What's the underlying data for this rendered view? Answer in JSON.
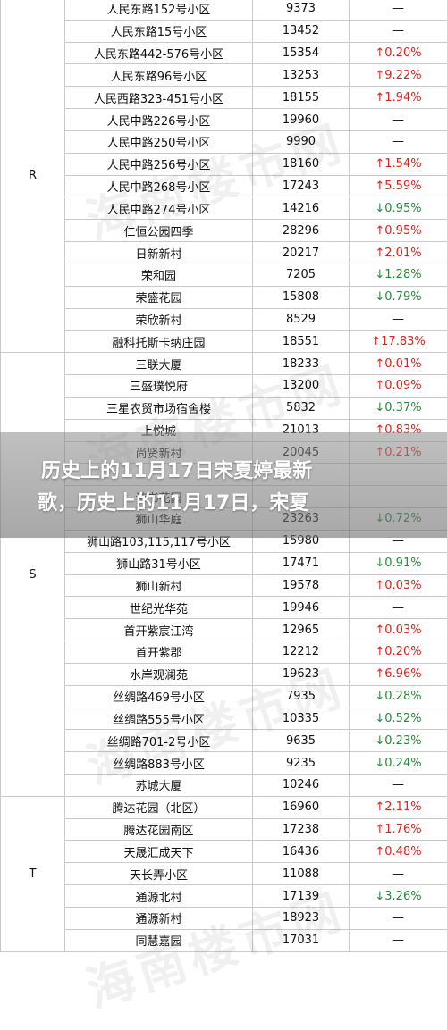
{
  "table": {
    "groups": [
      {
        "letter": "R",
        "rows": [
          {
            "name": "人民东路152号小区",
            "price": "9373",
            "change": "—",
            "dir": "flat"
          },
          {
            "name": "人民东路15号小区",
            "price": "13452",
            "change": "—",
            "dir": "flat"
          },
          {
            "name": "人民东路442-576号小区",
            "price": "15354",
            "change": "↑0.20%",
            "dir": "up"
          },
          {
            "name": "人民东路96号小区",
            "price": "13253",
            "change": "↑9.22%",
            "dir": "up"
          },
          {
            "name": "人民西路323-451号小区",
            "price": "18155",
            "change": "↑1.94%",
            "dir": "up"
          },
          {
            "name": "人民中路226号小区",
            "price": "19960",
            "change": "—",
            "dir": "flat"
          },
          {
            "name": "人民中路250号小区",
            "price": "9990",
            "change": "—",
            "dir": "flat"
          },
          {
            "name": "人民中路256号小区",
            "price": "18160",
            "change": "↑1.54%",
            "dir": "up"
          },
          {
            "name": "人民中路268号小区",
            "price": "17243",
            "change": "↑5.59%",
            "dir": "up"
          },
          {
            "name": "人民中路274号小区",
            "price": "14216",
            "change": "↓0.95%",
            "dir": "down"
          },
          {
            "name": "仁恒公园四季",
            "price": "28296",
            "change": "↑0.95%",
            "dir": "up"
          },
          {
            "name": "日新新村",
            "price": "20217",
            "change": "↑2.01%",
            "dir": "up"
          },
          {
            "name": "荣和园",
            "price": "7205",
            "change": "↓1.28%",
            "dir": "down"
          },
          {
            "name": "荣盛花园",
            "price": "15808",
            "change": "↓0.79%",
            "dir": "down"
          },
          {
            "name": "荣欣新村",
            "price": "8529",
            "change": "—",
            "dir": "flat"
          },
          {
            "name": "融科托斯卡纳庄园",
            "price": "18551",
            "change": "↑17.83%",
            "dir": "up"
          }
        ]
      },
      {
        "letter": "S",
        "rows": [
          {
            "name": "三联大厦",
            "price": "18233",
            "change": "↑0.01%",
            "dir": "up"
          },
          {
            "name": "三盛璞悦府",
            "price": "13200",
            "change": "↑0.09%",
            "dir": "up"
          },
          {
            "name": "三星农贸市场宿舍楼",
            "price": "5832",
            "change": "↓0.37%",
            "dir": "down"
          },
          {
            "name": "上悦城",
            "price": "21013",
            "change": "↑0.83%",
            "dir": "up"
          },
          {
            "name": "尚贤新村",
            "price": "20045",
            "change": "↑0.21%",
            "dir": "up"
          },
          {
            "name": "",
            "price": "",
            "change": "",
            "dir": "flat"
          },
          {
            "name": "诗书花园",
            "price": "",
            "change": "",
            "dir": "flat"
          },
          {
            "name": "狮山华庭",
            "price": "23263",
            "change": "↓0.72%",
            "dir": "down"
          },
          {
            "name": "狮山路103,115,117号小区",
            "price": "15980",
            "change": "—",
            "dir": "flat"
          },
          {
            "name": "狮山路31号小区",
            "price": "17471",
            "change": "↓0.91%",
            "dir": "down"
          },
          {
            "name": "狮山新村",
            "price": "19578",
            "change": "↑0.03%",
            "dir": "up"
          },
          {
            "name": "世纪光华苑",
            "price": "19946",
            "change": "—",
            "dir": "flat"
          },
          {
            "name": "首开紫宸江湾",
            "price": "12965",
            "change": "↑0.03%",
            "dir": "up"
          },
          {
            "name": "首开紫郡",
            "price": "12212",
            "change": "↑0.20%",
            "dir": "up"
          },
          {
            "name": "水岸观澜苑",
            "price": "19623",
            "change": "↑6.96%",
            "dir": "up"
          },
          {
            "name": "丝绸路469号小区",
            "price": "7935",
            "change": "↓0.28%",
            "dir": "down"
          },
          {
            "name": "丝绸路555号小区",
            "price": "10335",
            "change": "↓0.52%",
            "dir": "down"
          },
          {
            "name": "丝绸路701-2号小区",
            "price": "9635",
            "change": "↓0.23%",
            "dir": "down"
          },
          {
            "name": "丝绸路883号小区",
            "price": "9235",
            "change": "↓0.24%",
            "dir": "down"
          },
          {
            "name": "苏城大厦",
            "price": "10246",
            "change": "—",
            "dir": "flat"
          }
        ]
      },
      {
        "letter": "T",
        "rows": [
          {
            "name": "腾达花园（北区）",
            "price": "16960",
            "change": "↑2.11%",
            "dir": "up"
          },
          {
            "name": "腾达花园南区",
            "price": "17238",
            "change": "↑1.76%",
            "dir": "up"
          },
          {
            "name": "天晟汇成天下",
            "price": "16436",
            "change": "↑0.48%",
            "dir": "up"
          },
          {
            "name": "天长弄小区",
            "price": "11088",
            "change": "—",
            "dir": "flat"
          },
          {
            "name": "通源北村",
            "price": "17139",
            "change": "↓3.26%",
            "dir": "down"
          },
          {
            "name": "通源新村",
            "price": "18923",
            "change": "—",
            "dir": "flat"
          },
          {
            "name": "同慧嘉园",
            "price": "17031",
            "change": "—",
            "dir": "flat"
          }
        ]
      }
    ]
  },
  "banner": {
    "line1": "历史上的11月17日宋夏婷最新",
    "line2": "歌，历史上的11月17日，宋夏"
  },
  "watermark": "海南楼市网",
  "colors": {
    "up": "#d9241d",
    "down": "#27883a",
    "border": "#c9c9c9"
  }
}
